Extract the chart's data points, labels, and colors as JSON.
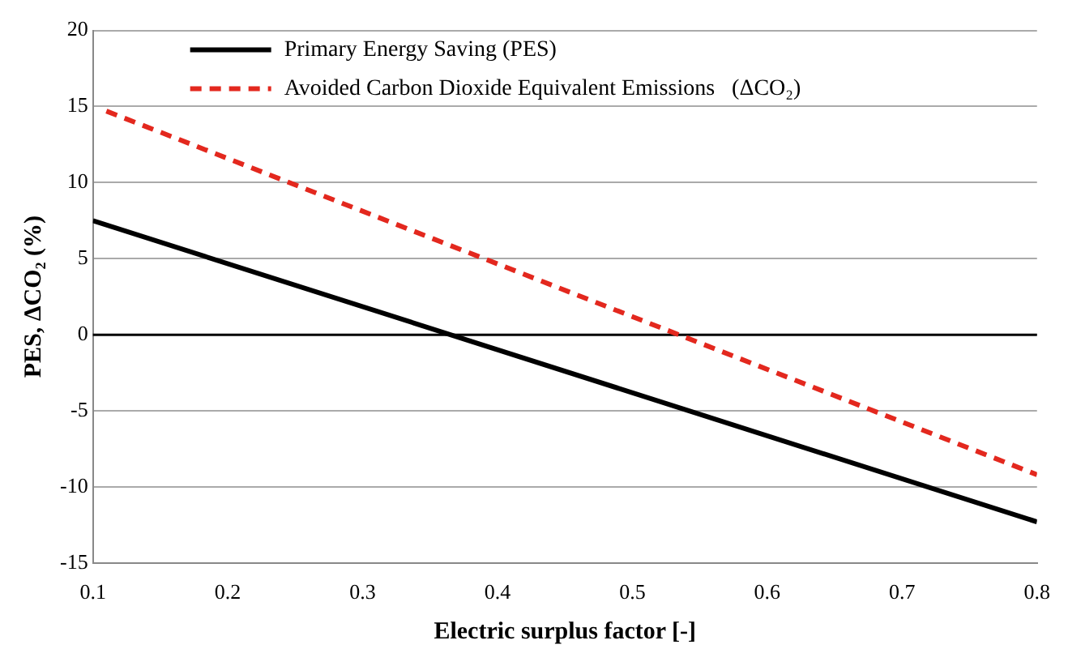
{
  "chart_data": {
    "type": "line",
    "xlabel": "Electric surplus factor [-]",
    "ylabel": "PES, ΔCO₂ (%)",
    "xlim": [
      0.1,
      0.8
    ],
    "xticks": [
      {
        "value": 0.1,
        "label": "0.1"
      },
      {
        "value": 0.2,
        "label": "0.2"
      },
      {
        "value": 0.3,
        "label": "0.3"
      },
      {
        "value": 0.4,
        "label": "0.4"
      },
      {
        "value": 0.5,
        "label": "0.5"
      },
      {
        "value": 0.6,
        "label": "0.6"
      },
      {
        "value": 0.7,
        "label": "0.7"
      },
      {
        "value": 0.8,
        "label": "0.8"
      }
    ],
    "ylim": [
      -15,
      20
    ],
    "yticks": [
      -15,
      -10,
      -5,
      0,
      5,
      10,
      15,
      20
    ],
    "grid": "y",
    "legend": "top left",
    "marker": "none",
    "ref_lines": [
      {
        "axis": "y",
        "value": 0,
        "color": "#000000"
      }
    ],
    "series": [
      {
        "name": "Primary Energy Saving (PES)",
        "color": "#000000",
        "line_style": "solid",
        "x": [
          0.1,
          0.8
        ],
        "values": [
          7.5,
          -12.3
        ]
      },
      {
        "name": "Avoided Carbon Dioxide Equivalent Emissions   (ΔCO₂)",
        "color": "#e3281e",
        "line_style": "dashed",
        "x": [
          0.11,
          0.8
        ],
        "values": [
          14.7,
          -9.2
        ]
      }
    ]
  }
}
